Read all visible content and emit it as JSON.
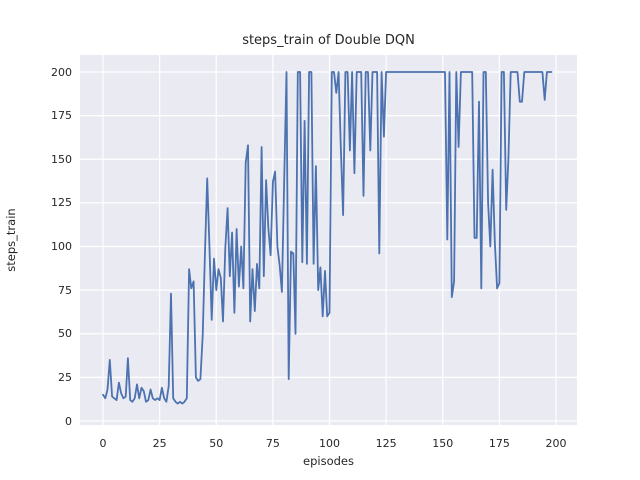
{
  "chart_data": {
    "type": "line",
    "title": "steps_train of Double DQN",
    "xlabel": "episodes",
    "ylabel": "steps_train",
    "x_ticks": [
      0,
      25,
      50,
      75,
      100,
      125,
      150,
      175,
      200
    ],
    "y_ticks": [
      0,
      25,
      50,
      75,
      100,
      125,
      150,
      175,
      200
    ],
    "xlim": [
      -10,
      209
    ],
    "ylim": [
      0,
      210
    ],
    "grid": true,
    "grid_color": "#ffffff",
    "plot_bg_color": "#eaeaf2",
    "figure_bg_color": "#ffffff",
    "text_color": "#262626",
    "legend_position": "none",
    "series": [
      {
        "name": "steps_train",
        "color": "#4c72b0",
        "x_start": 0,
        "x_step": 1,
        "values": [
          15,
          13,
          18,
          35,
          14,
          13,
          12,
          22,
          16,
          13,
          14,
          36,
          12,
          11,
          13,
          21,
          13,
          19,
          17,
          11,
          12,
          18,
          13,
          12,
          13,
          12,
          19,
          13,
          11,
          20,
          73,
          13,
          11,
          10,
          11,
          10,
          11,
          13,
          87,
          76,
          80,
          25,
          23,
          24,
          49,
          95,
          139,
          99,
          58,
          93,
          75,
          87,
          82,
          57,
          99,
          122,
          83,
          108,
          62,
          110,
          77,
          100,
          76,
          148,
          158,
          57,
          87,
          63,
          90,
          76,
          157,
          83,
          138,
          111,
          95,
          137,
          143,
          100,
          89,
          74,
          138,
          200,
          24,
          97,
          96,
          50,
          200,
          200,
          91,
          172,
          90,
          200,
          200,
          90,
          146,
          75,
          88,
          60,
          86,
          60,
          62,
          200,
          200,
          188,
          200,
          157,
          118,
          200,
          200,
          155,
          200,
          142,
          200,
          200,
          200,
          129,
          200,
          200,
          155,
          200,
          200,
          200,
          96,
          200,
          163,
          200,
          200,
          200,
          200,
          200,
          200,
          200,
          200,
          200,
          200,
          200,
          200,
          200,
          200,
          200,
          200,
          200,
          200,
          200,
          200,
          200,
          200,
          200,
          200,
          200,
          200,
          200,
          104,
          200,
          71,
          80,
          200,
          157,
          200,
          200,
          200,
          200,
          200,
          200,
          105,
          105,
          183,
          76,
          200,
          200,
          125,
          100,
          144,
          103,
          76,
          79,
          200,
          200,
          121,
          150,
          200,
          200,
          200,
          200,
          183,
          183,
          200,
          200,
          200,
          200,
          200,
          200,
          200,
          200,
          200,
          184,
          200,
          200,
          200
        ]
      }
    ]
  }
}
